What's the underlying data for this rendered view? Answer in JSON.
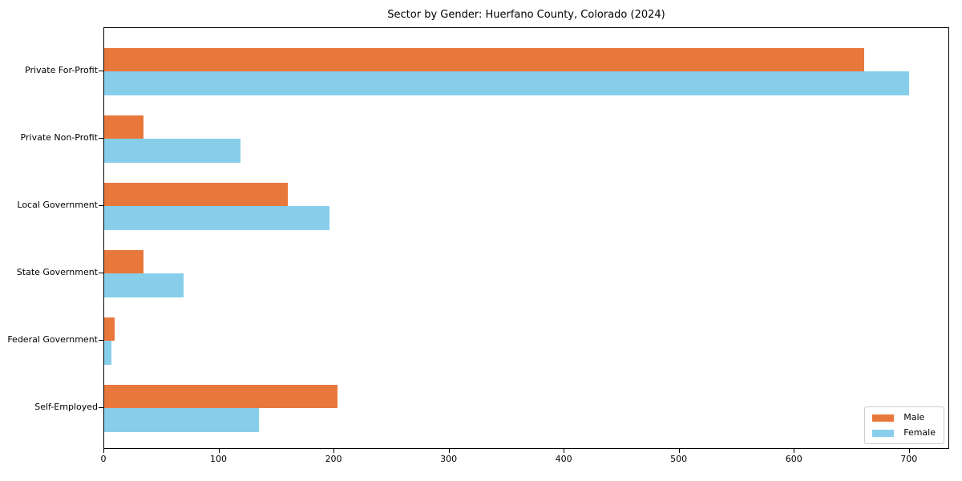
{
  "figure_title": "Sector by Gender: Huerfano County, Colorado (2024)",
  "chart_data": {
    "type": "bar",
    "orientation": "horizontal",
    "title": "Sector by Gender: Huerfano County, Colorado (2024)",
    "xlabel": "",
    "ylabel": "",
    "categories": [
      "Private For-Profit",
      "Private Non-Profit",
      "Local Government",
      "State Government",
      "Federal Government",
      "Self-Employed"
    ],
    "series": [
      {
        "name": "Male",
        "color": "#E8773C",
        "values": [
          662,
          34,
          160,
          34,
          9,
          203
        ]
      },
      {
        "name": "Female",
        "color": "#87CEEB",
        "values": [
          701,
          119,
          196,
          69,
          6,
          135
        ]
      }
    ],
    "x_ticks": [
      0,
      100,
      200,
      300,
      400,
      500,
      600,
      700
    ],
    "xlim": [
      0,
      735
    ],
    "grid": false,
    "legend": {
      "position": "lower-right",
      "entries": [
        "Male",
        "Female"
      ]
    },
    "background_color": "#ffffff",
    "spine_color": "#000000",
    "legend_border_color": "#cccccc"
  }
}
